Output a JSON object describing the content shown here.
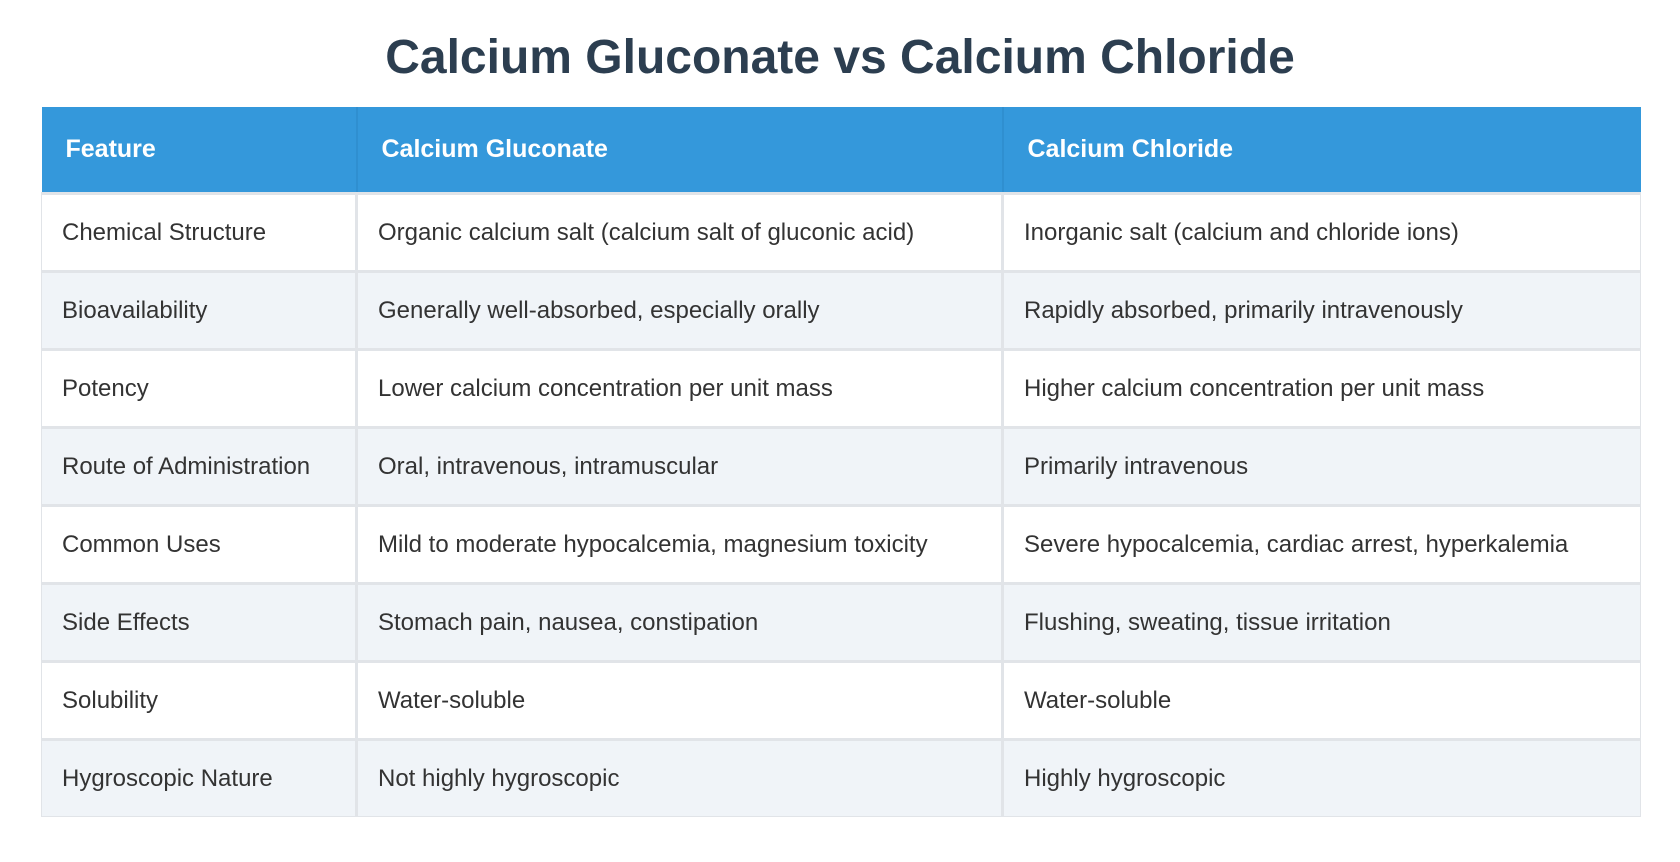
{
  "title": "Calcium Gluconate vs Calcium Chloride",
  "table": {
    "headers": [
      "Feature",
      "Calcium Gluconate",
      "Calcium Chloride"
    ],
    "rows": [
      [
        "Chemical Structure",
        "Organic calcium salt (calcium salt of gluconic acid)",
        "Inorganic salt (calcium and chloride ions)"
      ],
      [
        "Bioavailability",
        "Generally well-absorbed, especially orally",
        "Rapidly absorbed, primarily intravenously"
      ],
      [
        "Potency",
        "Lower calcium concentration per unit mass",
        "Higher calcium concentration per unit mass"
      ],
      [
        "Route of Administration",
        "Oral, intravenous, intramuscular",
        "Primarily intravenous"
      ],
      [
        "Common Uses",
        "Mild to moderate hypocalcemia, magnesium toxicity",
        "Severe hypocalcemia, cardiac arrest, hyperkalemia"
      ],
      [
        "Side Effects",
        "Stomach pain, nausea, constipation",
        "Flushing, sweating, tissue irritation"
      ],
      [
        "Solubility",
        "Water-soluble",
        "Water-soluble"
      ],
      [
        "Hygroscopic Nature",
        "Not highly hygroscopic",
        "Highly hygroscopic"
      ]
    ]
  },
  "colors": {
    "header_background": "#3498db",
    "title_text": "#2c3e50",
    "row_alt_background": "#f0f4f8"
  }
}
